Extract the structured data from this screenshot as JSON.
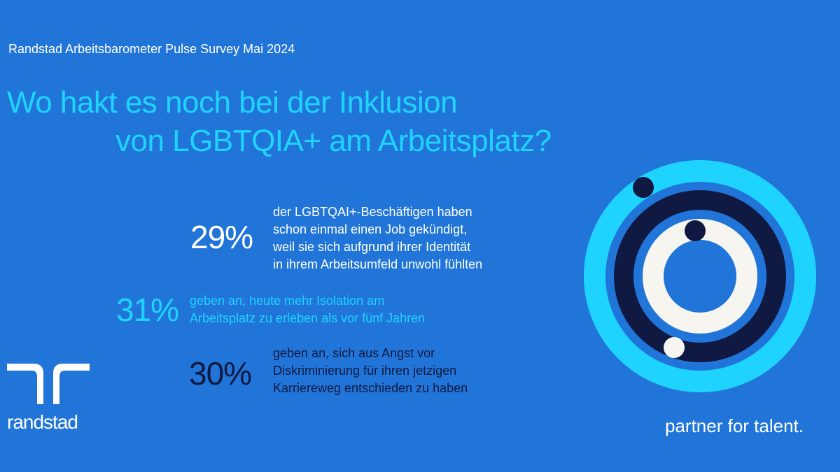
{
  "header": {
    "survey_label": "Randstad Arbeitsbarometer Pulse Survey Mai 2024",
    "title_line1": "Wo hakt es noch bei der Inklusion",
    "title_line2": "von LGBTQIA+ am Arbeitsplatz?"
  },
  "stats": [
    {
      "value": "29%",
      "lines": [
        "der LGBTQAI+-Beschäftigen haben",
        "schon einmal einen Job gekündigt,",
        "weil sie sich aufgrund ihrer Identität",
        "in ihrem Arbeitsumfeld unwohl fühlten"
      ]
    },
    {
      "value": "31%",
      "lines": [
        "geben an, heute mehr Isolation am",
        "Arbeitsplatz zu erleben als vor fünf Jahren"
      ]
    },
    {
      "value": "30%",
      "lines": [
        "geben an, sich aus Angst vor",
        "Diskriminierung für ihren jetzigen",
        "Karriereweg entschieden zu haben"
      ]
    }
  ],
  "brand": {
    "logo_text": "randstad",
    "tagline": "partner for talent."
  },
  "colors": {
    "background": "#2175d9",
    "cyan": "#1fd3ff",
    "navy": "#0f1941",
    "offwhite": "#f7f5f0"
  }
}
